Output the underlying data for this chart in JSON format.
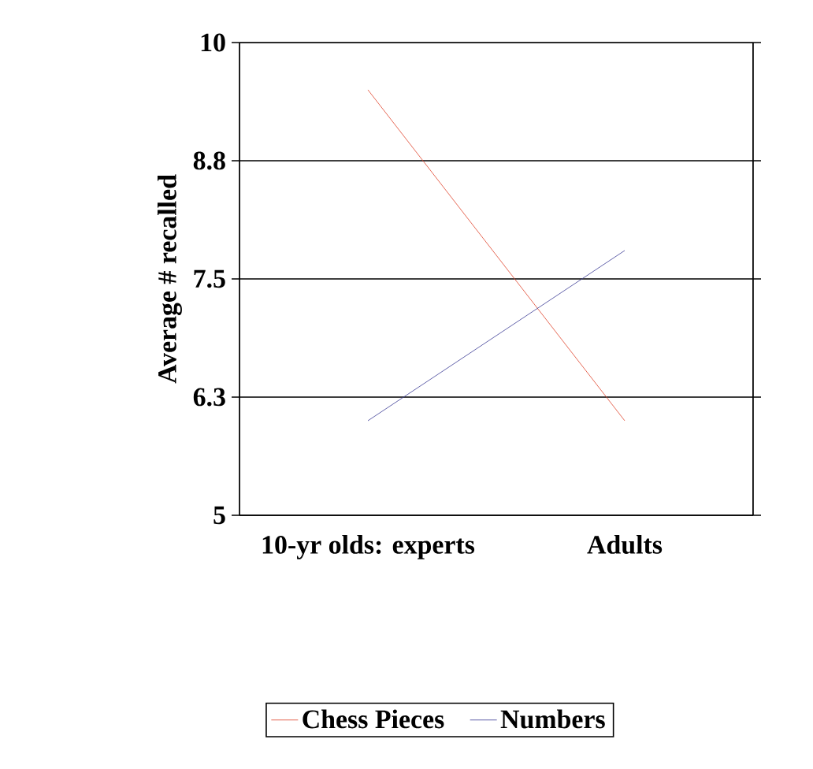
{
  "chart_data": {
    "type": "line",
    "ylabel": "Average # recalled",
    "categories": [
      "10-yr olds: experts",
      "Adults"
    ],
    "series": [
      {
        "name": "Chess Pieces",
        "color": "#e0442c",
        "values": [
          9.5,
          6.0
        ]
      },
      {
        "name": "Numbers",
        "color": "#3c3c96",
        "values": [
          6.0,
          7.8
        ]
      }
    ],
    "ylim": [
      5,
      10
    ],
    "yticks": [
      5,
      {
        "value": 6.25,
        "label": "6.3"
      },
      7.5,
      {
        "value": 8.75,
        "label": "8.8"
      },
      10
    ],
    "grid": "y",
    "legend": "bottom",
    "marker": "none",
    "line_style": "solid"
  }
}
